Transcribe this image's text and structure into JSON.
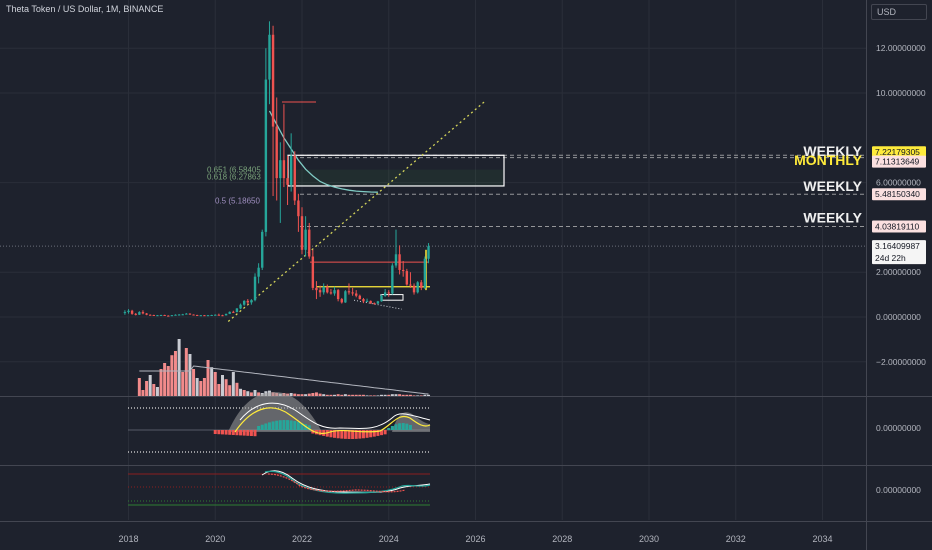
{
  "header": {
    "title": "Theta Token / US Dollar, 1M, BINANCE",
    "currency": "USD"
  },
  "colors": {
    "background": "#1e222d",
    "grid": "#2a2e39",
    "axis_text": "#b2b5be",
    "up": "#26a69a",
    "down": "#ef5350",
    "volume_up": "#c9ccd3",
    "volume_down": "#f28b8b",
    "ma_line": "#80cbc4",
    "trend_line": "#d4d45a",
    "fib_text": "#7aa37a",
    "annotation_white": "#ffffff",
    "annotation_yellow": "#ffeb3b"
  },
  "chart_data": {
    "type": "candlestick",
    "title": "Theta Token / US Dollar, 1M, BINANCE",
    "ylim": [
      -2.0,
      13.0
    ],
    "x_ticks": [
      "2018",
      "2020",
      "2022",
      "2024",
      "2026",
      "2028",
      "2030",
      "2032",
      "2034"
    ],
    "y_ticks": [
      {
        "value": 12.0,
        "label": "12.00000000"
      },
      {
        "value": 10.0,
        "label": "10.00000000"
      },
      {
        "value": 6.0,
        "label": "6.00000000"
      },
      {
        "value": 2.0,
        "label": "2.00000000"
      },
      {
        "value": 0.0,
        "label": "0.00000000"
      },
      {
        "value": -2.0,
        "label": "−2.00000000"
      }
    ],
    "price_labels": [
      {
        "value": 7.22179305,
        "label": "7.22179305",
        "style": "yellow"
      },
      {
        "value": 7.11313649,
        "label": "7.11313649",
        "style": "pink"
      },
      {
        "value": 5.4815034,
        "label": "5.48150340",
        "style": "pink"
      },
      {
        "value": 4.0381911,
        "label": "4.03819110",
        "style": "pink"
      },
      {
        "value": 3.16409987,
        "label": "3.16409987",
        "style": "current",
        "countdown": "24d 22h"
      }
    ],
    "level_annotations": [
      {
        "value": 7.4,
        "text": "WEEKLY",
        "color": "white"
      },
      {
        "value": 7.0,
        "text": "MONTHLY",
        "color": "yellow"
      },
      {
        "value": 5.85,
        "text": "WEEKLY",
        "color": "white"
      },
      {
        "value": 4.45,
        "text": "WEEKLY",
        "color": "white"
      }
    ],
    "fib_labels": [
      {
        "value": 6.58,
        "text": "0.651 (6.58405"
      },
      {
        "value": 6.28,
        "text": "0.618 (6.27863"
      },
      {
        "value": 5.19,
        "text": "0.5 (5.18650"
      }
    ],
    "candles": [
      {
        "t": 2017.917,
        "o": 0.18,
        "h": 0.3,
        "l": 0.1,
        "c": 0.22
      },
      {
        "t": 2018.0,
        "o": 0.22,
        "h": 0.35,
        "l": 0.15,
        "c": 0.28
      },
      {
        "t": 2018.083,
        "o": 0.28,
        "h": 0.32,
        "l": 0.1,
        "c": 0.14
      },
      {
        "t": 2018.167,
        "o": 0.14,
        "h": 0.18,
        "l": 0.07,
        "c": 0.1
      },
      {
        "t": 2018.25,
        "o": 0.1,
        "h": 0.26,
        "l": 0.09,
        "c": 0.22
      },
      {
        "t": 2018.333,
        "o": 0.22,
        "h": 0.3,
        "l": 0.12,
        "c": 0.16
      },
      {
        "t": 2018.417,
        "o": 0.16,
        "h": 0.18,
        "l": 0.08,
        "c": 0.1
      },
      {
        "t": 2018.5,
        "o": 0.1,
        "h": 0.12,
        "l": 0.07,
        "c": 0.09
      },
      {
        "t": 2018.583,
        "o": 0.09,
        "h": 0.1,
        "l": 0.06,
        "c": 0.07
      },
      {
        "t": 2018.667,
        "o": 0.07,
        "h": 0.09,
        "l": 0.06,
        "c": 0.08
      },
      {
        "t": 2018.75,
        "o": 0.08,
        "h": 0.1,
        "l": 0.07,
        "c": 0.09
      },
      {
        "t": 2018.833,
        "o": 0.09,
        "h": 0.1,
        "l": 0.05,
        "c": 0.06
      },
      {
        "t": 2018.917,
        "o": 0.06,
        "h": 0.08,
        "l": 0.04,
        "c": 0.05
      },
      {
        "t": 2019.0,
        "o": 0.05,
        "h": 0.09,
        "l": 0.05,
        "c": 0.08
      },
      {
        "t": 2019.083,
        "o": 0.08,
        "h": 0.12,
        "l": 0.07,
        "c": 0.1
      },
      {
        "t": 2019.167,
        "o": 0.1,
        "h": 0.13,
        "l": 0.09,
        "c": 0.11
      },
      {
        "t": 2019.25,
        "o": 0.11,
        "h": 0.14,
        "l": 0.09,
        "c": 0.12
      },
      {
        "t": 2019.333,
        "o": 0.12,
        "h": 0.18,
        "l": 0.11,
        "c": 0.15
      },
      {
        "t": 2019.417,
        "o": 0.15,
        "h": 0.17,
        "l": 0.1,
        "c": 0.11
      },
      {
        "t": 2019.5,
        "o": 0.11,
        "h": 0.12,
        "l": 0.08,
        "c": 0.09
      },
      {
        "t": 2019.583,
        "o": 0.09,
        "h": 0.1,
        "l": 0.07,
        "c": 0.08
      },
      {
        "t": 2019.667,
        "o": 0.08,
        "h": 0.09,
        "l": 0.07,
        "c": 0.08
      },
      {
        "t": 2019.75,
        "o": 0.08,
        "h": 0.09,
        "l": 0.06,
        "c": 0.07
      },
      {
        "t": 2019.833,
        "o": 0.07,
        "h": 0.09,
        "l": 0.06,
        "c": 0.08
      },
      {
        "t": 2019.917,
        "o": 0.08,
        "h": 0.1,
        "l": 0.07,
        "c": 0.09
      },
      {
        "t": 2020.0,
        "o": 0.09,
        "h": 0.12,
        "l": 0.08,
        "c": 0.1
      },
      {
        "t": 2020.083,
        "o": 0.1,
        "h": 0.15,
        "l": 0.08,
        "c": 0.08
      },
      {
        "t": 2020.167,
        "o": 0.08,
        "h": 0.1,
        "l": 0.04,
        "c": 0.07
      },
      {
        "t": 2020.25,
        "o": 0.07,
        "h": 0.15,
        "l": 0.07,
        "c": 0.14
      },
      {
        "t": 2020.333,
        "o": 0.14,
        "h": 0.25,
        "l": 0.13,
        "c": 0.23
      },
      {
        "t": 2020.417,
        "o": 0.23,
        "h": 0.28,
        "l": 0.18,
        "c": 0.22
      },
      {
        "t": 2020.5,
        "o": 0.22,
        "h": 0.4,
        "l": 0.21,
        "c": 0.38
      },
      {
        "t": 2020.583,
        "o": 0.38,
        "h": 0.6,
        "l": 0.35,
        "c": 0.55
      },
      {
        "t": 2020.667,
        "o": 0.55,
        "h": 0.75,
        "l": 0.5,
        "c": 0.72
      },
      {
        "t": 2020.75,
        "o": 0.72,
        "h": 0.8,
        "l": 0.55,
        "c": 0.65
      },
      {
        "t": 2020.833,
        "o": 0.65,
        "h": 0.8,
        "l": 0.55,
        "c": 0.75
      },
      {
        "t": 2020.917,
        "o": 0.75,
        "h": 1.95,
        "l": 0.7,
        "c": 1.8
      },
      {
        "t": 2021.0,
        "o": 1.8,
        "h": 2.4,
        "l": 1.5,
        "c": 2.2
      },
      {
        "t": 2021.083,
        "o": 2.2,
        "h": 3.9,
        "l": 2.1,
        "c": 3.8
      },
      {
        "t": 2021.167,
        "o": 3.8,
        "h": 12.0,
        "l": 3.6,
        "c": 10.6
      },
      {
        "t": 2021.25,
        "o": 10.6,
        "h": 15.8,
        "l": 9.5,
        "c": 12.6
      },
      {
        "t": 2021.333,
        "o": 12.6,
        "h": 13.0,
        "l": 5.4,
        "c": 8.5
      },
      {
        "t": 2021.417,
        "o": 8.5,
        "h": 9.8,
        "l": 5.2,
        "c": 6.2
      },
      {
        "t": 2021.5,
        "o": 6.2,
        "h": 7.8,
        "l": 4.2,
        "c": 7.0
      },
      {
        "t": 2021.583,
        "o": 7.0,
        "h": 9.5,
        "l": 5.8,
        "c": 6.2
      },
      {
        "t": 2021.667,
        "o": 6.2,
        "h": 7.2,
        "l": 5.0,
        "c": 5.9
      },
      {
        "t": 2021.75,
        "o": 5.9,
        "h": 8.2,
        "l": 5.6,
        "c": 7.2
      },
      {
        "t": 2021.833,
        "o": 7.2,
        "h": 7.4,
        "l": 5.0,
        "c": 5.2
      },
      {
        "t": 2021.917,
        "o": 5.2,
        "h": 5.5,
        "l": 3.8,
        "c": 4.5
      },
      {
        "t": 2022.0,
        "o": 4.5,
        "h": 4.9,
        "l": 2.8,
        "c": 3.0
      },
      {
        "t": 2022.083,
        "o": 3.0,
        "h": 4.5,
        "l": 2.7,
        "c": 3.9
      },
      {
        "t": 2022.167,
        "o": 3.9,
        "h": 4.2,
        "l": 2.6,
        "c": 2.7
      },
      {
        "t": 2022.25,
        "o": 2.7,
        "h": 3.0,
        "l": 1.2,
        "c": 1.3
      },
      {
        "t": 2022.333,
        "o": 1.3,
        "h": 1.6,
        "l": 0.8,
        "c": 1.2
      },
      {
        "t": 2022.417,
        "o": 1.2,
        "h": 1.4,
        "l": 0.9,
        "c": 1.1
      },
      {
        "t": 2022.5,
        "o": 1.1,
        "h": 1.5,
        "l": 1.0,
        "c": 1.35
      },
      {
        "t": 2022.583,
        "o": 1.35,
        "h": 1.45,
        "l": 1.05,
        "c": 1.1
      },
      {
        "t": 2022.667,
        "o": 1.1,
        "h": 1.25,
        "l": 1.0,
        "c": 1.05
      },
      {
        "t": 2022.75,
        "o": 1.05,
        "h": 1.35,
        "l": 0.95,
        "c": 1.2
      },
      {
        "t": 2022.833,
        "o": 1.2,
        "h": 1.25,
        "l": 0.7,
        "c": 0.8
      },
      {
        "t": 2022.917,
        "o": 0.8,
        "h": 0.85,
        "l": 0.6,
        "c": 0.65
      },
      {
        "t": 2023.0,
        "o": 0.65,
        "h": 1.2,
        "l": 0.63,
        "c": 1.15
      },
      {
        "t": 2023.083,
        "o": 1.15,
        "h": 1.5,
        "l": 1.0,
        "c": 1.1
      },
      {
        "t": 2023.167,
        "o": 1.1,
        "h": 1.3,
        "l": 0.95,
        "c": 1.05
      },
      {
        "t": 2023.25,
        "o": 1.05,
        "h": 1.2,
        "l": 0.88,
        "c": 0.95
      },
      {
        "t": 2023.333,
        "o": 0.95,
        "h": 1.0,
        "l": 0.78,
        "c": 0.8
      },
      {
        "t": 2023.417,
        "o": 0.8,
        "h": 0.85,
        "l": 0.62,
        "c": 0.7
      },
      {
        "t": 2023.5,
        "o": 0.7,
        "h": 0.82,
        "l": 0.68,
        "c": 0.72
      },
      {
        "t": 2023.583,
        "o": 0.72,
        "h": 0.74,
        "l": 0.58,
        "c": 0.62
      },
      {
        "t": 2023.667,
        "o": 0.62,
        "h": 0.65,
        "l": 0.55,
        "c": 0.6
      },
      {
        "t": 2023.75,
        "o": 0.6,
        "h": 0.72,
        "l": 0.58,
        "c": 0.7
      },
      {
        "t": 2023.833,
        "o": 0.7,
        "h": 1.0,
        "l": 0.68,
        "c": 0.95
      },
      {
        "t": 2023.917,
        "o": 0.95,
        "h": 1.25,
        "l": 0.9,
        "c": 1.1
      },
      {
        "t": 2024.0,
        "o": 1.1,
        "h": 1.2,
        "l": 0.9,
        "c": 1.05
      },
      {
        "t": 2024.083,
        "o": 1.05,
        "h": 2.4,
        "l": 1.0,
        "c": 2.3
      },
      {
        "t": 2024.167,
        "o": 2.3,
        "h": 3.9,
        "l": 2.2,
        "c": 2.8
      },
      {
        "t": 2024.25,
        "o": 2.8,
        "h": 3.2,
        "l": 1.9,
        "c": 2.1
      },
      {
        "t": 2024.333,
        "o": 2.1,
        "h": 2.5,
        "l": 1.8,
        "c": 2.05
      },
      {
        "t": 2024.417,
        "o": 2.05,
        "h": 2.15,
        "l": 1.4,
        "c": 1.45
      },
      {
        "t": 2024.5,
        "o": 1.45,
        "h": 2.0,
        "l": 1.3,
        "c": 1.4
      },
      {
        "t": 2024.583,
        "o": 1.4,
        "h": 1.5,
        "l": 1.0,
        "c": 1.1
      },
      {
        "t": 2024.667,
        "o": 1.1,
        "h": 1.6,
        "l": 1.05,
        "c": 1.55
      },
      {
        "t": 2024.75,
        "o": 1.55,
        "h": 1.65,
        "l": 1.2,
        "c": 1.3
      },
      {
        "t": 2024.833,
        "o": 1.3,
        "h": 2.7,
        "l": 1.25,
        "c": 2.6
      },
      {
        "t": 2024.917,
        "o": 2.6,
        "h": 3.3,
        "l": 2.4,
        "c": 3.16
      }
    ],
    "volume": [
      {
        "t": 2018.25,
        "v": 0.3,
        "up": false
      },
      {
        "t": 2018.333,
        "v": 0.1,
        "up": false
      },
      {
        "t": 2018.417,
        "v": 0.25,
        "up": false
      },
      {
        "t": 2018.5,
        "v": 0.35,
        "up": true
      },
      {
        "t": 2018.583,
        "v": 0.2,
        "up": false
      },
      {
        "t": 2018.667,
        "v": 0.15,
        "up": true
      },
      {
        "t": 2018.75,
        "v": 0.45,
        "up": false
      },
      {
        "t": 2018.833,
        "v": 0.55,
        "up": false
      },
      {
        "t": 2018.917,
        "v": 0.5,
        "up": false
      },
      {
        "t": 2019.0,
        "v": 0.68,
        "up": false
      },
      {
        "t": 2019.083,
        "v": 0.75,
        "up": false
      },
      {
        "t": 2019.167,
        "v": 0.95,
        "up": true
      },
      {
        "t": 2019.25,
        "v": 0.4,
        "up": false
      },
      {
        "t": 2019.333,
        "v": 0.8,
        "up": false
      },
      {
        "t": 2019.417,
        "v": 0.7,
        "up": true
      },
      {
        "t": 2019.5,
        "v": 0.45,
        "up": false
      },
      {
        "t": 2019.583,
        "v": 0.3,
        "up": true
      },
      {
        "t": 2019.667,
        "v": 0.25,
        "up": false
      },
      {
        "t": 2019.75,
        "v": 0.3,
        "up": false
      },
      {
        "t": 2019.833,
        "v": 0.6,
        "up": false
      },
      {
        "t": 2019.917,
        "v": 0.48,
        "up": true
      },
      {
        "t": 2020.0,
        "v": 0.4,
        "up": false
      },
      {
        "t": 2020.083,
        "v": 0.2,
        "up": false
      },
      {
        "t": 2020.167,
        "v": 0.35,
        "up": true
      },
      {
        "t": 2020.25,
        "v": 0.28,
        "up": false
      },
      {
        "t": 2020.333,
        "v": 0.18,
        "up": false
      },
      {
        "t": 2020.417,
        "v": 0.4,
        "up": true
      },
      {
        "t": 2020.5,
        "v": 0.22,
        "up": false
      },
      {
        "t": 2020.583,
        "v": 0.12,
        "up": true
      },
      {
        "t": 2020.667,
        "v": 0.1,
        "up": false
      },
      {
        "t": 2020.75,
        "v": 0.08,
        "up": true
      },
      {
        "t": 2020.833,
        "v": 0.06,
        "up": false
      },
      {
        "t": 2020.917,
        "v": 0.1,
        "up": true
      },
      {
        "t": 2021.0,
        "v": 0.06,
        "up": false
      },
      {
        "t": 2021.083,
        "v": 0.05,
        "up": true
      },
      {
        "t": 2021.167,
        "v": 0.08,
        "up": true
      },
      {
        "t": 2021.25,
        "v": 0.09,
        "up": true
      },
      {
        "t": 2021.333,
        "v": 0.06,
        "up": false
      },
      {
        "t": 2021.417,
        "v": 0.05,
        "up": false
      },
      {
        "t": 2021.5,
        "v": 0.04,
        "up": true
      },
      {
        "t": 2021.583,
        "v": 0.05,
        "up": false
      },
      {
        "t": 2021.667,
        "v": 0.04,
        "up": false
      },
      {
        "t": 2021.75,
        "v": 0.05,
        "up": true
      },
      {
        "t": 2021.833,
        "v": 0.04,
        "up": false
      },
      {
        "t": 2021.917,
        "v": 0.03,
        "up": false
      },
      {
        "t": 2022.0,
        "v": 0.03,
        "up": false
      },
      {
        "t": 2022.083,
        "v": 0.03,
        "up": true
      },
      {
        "t": 2022.167,
        "v": 0.04,
        "up": false
      },
      {
        "t": 2022.25,
        "v": 0.05,
        "up": false
      },
      {
        "t": 2022.333,
        "v": 0.06,
        "up": false
      },
      {
        "t": 2022.417,
        "v": 0.04,
        "up": false
      },
      {
        "t": 2022.5,
        "v": 0.03,
        "up": true
      },
      {
        "t": 2022.583,
        "v": 0.02,
        "up": false
      },
      {
        "t": 2022.667,
        "v": 0.02,
        "up": false
      },
      {
        "t": 2022.75,
        "v": 0.02,
        "up": true
      },
      {
        "t": 2022.833,
        "v": 0.03,
        "up": false
      },
      {
        "t": 2022.917,
        "v": 0.02,
        "up": false
      },
      {
        "t": 2023.0,
        "v": 0.03,
        "up": true
      },
      {
        "t": 2023.083,
        "v": 0.02,
        "up": false
      },
      {
        "t": 2023.167,
        "v": 0.02,
        "up": false
      },
      {
        "t": 2023.25,
        "v": 0.02,
        "up": false
      },
      {
        "t": 2023.333,
        "v": 0.02,
        "up": false
      },
      {
        "t": 2023.417,
        "v": 0.02,
        "up": false
      },
      {
        "t": 2023.5,
        "v": 0.01,
        "up": true
      },
      {
        "t": 2023.583,
        "v": 0.01,
        "up": false
      },
      {
        "t": 2023.667,
        "v": 0.01,
        "up": false
      },
      {
        "t": 2023.75,
        "v": 0.01,
        "up": true
      },
      {
        "t": 2023.833,
        "v": 0.02,
        "up": true
      },
      {
        "t": 2023.917,
        "v": 0.02,
        "up": true
      },
      {
        "t": 2024.0,
        "v": 0.02,
        "up": false
      },
      {
        "t": 2024.083,
        "v": 0.03,
        "up": true
      },
      {
        "t": 2024.167,
        "v": 0.03,
        "up": true
      },
      {
        "t": 2024.25,
        "v": 0.03,
        "up": false
      },
      {
        "t": 2024.333,
        "v": 0.02,
        "up": false
      },
      {
        "t": 2024.417,
        "v": 0.02,
        "up": false
      },
      {
        "t": 2024.5,
        "v": 0.02,
        "up": false
      },
      {
        "t": 2024.583,
        "v": 0.01,
        "up": false
      },
      {
        "t": 2024.667,
        "v": 0.01,
        "up": true
      },
      {
        "t": 2024.75,
        "v": 0.01,
        "up": false
      },
      {
        "t": 2024.833,
        "v": 0.02,
        "up": true
      },
      {
        "t": 2024.917,
        "v": 0.02,
        "up": true
      }
    ],
    "ma": [
      [
        2021.25,
        9.2
      ],
      [
        2021.417,
        8.6
      ],
      [
        2021.583,
        8.0
      ],
      [
        2021.75,
        7.5
      ],
      [
        2021.917,
        7.0
      ],
      [
        2022.083,
        6.6
      ],
      [
        2022.25,
        6.3
      ],
      [
        2022.417,
        6.05
      ],
      [
        2022.583,
        5.9
      ],
      [
        2022.75,
        5.8
      ],
      [
        2022.917,
        5.72
      ],
      [
        2023.083,
        5.66
      ],
      [
        2023.25,
        5.62
      ],
      [
        2023.417,
        5.6
      ],
      [
        2023.583,
        5.58
      ],
      [
        2023.75,
        5.57
      ]
    ],
    "indicator_panes": [
      {
        "name": "pane2",
        "y_tick": "0.00000000"
      },
      {
        "name": "pane3",
        "y_tick": "0.00000000"
      }
    ]
  }
}
